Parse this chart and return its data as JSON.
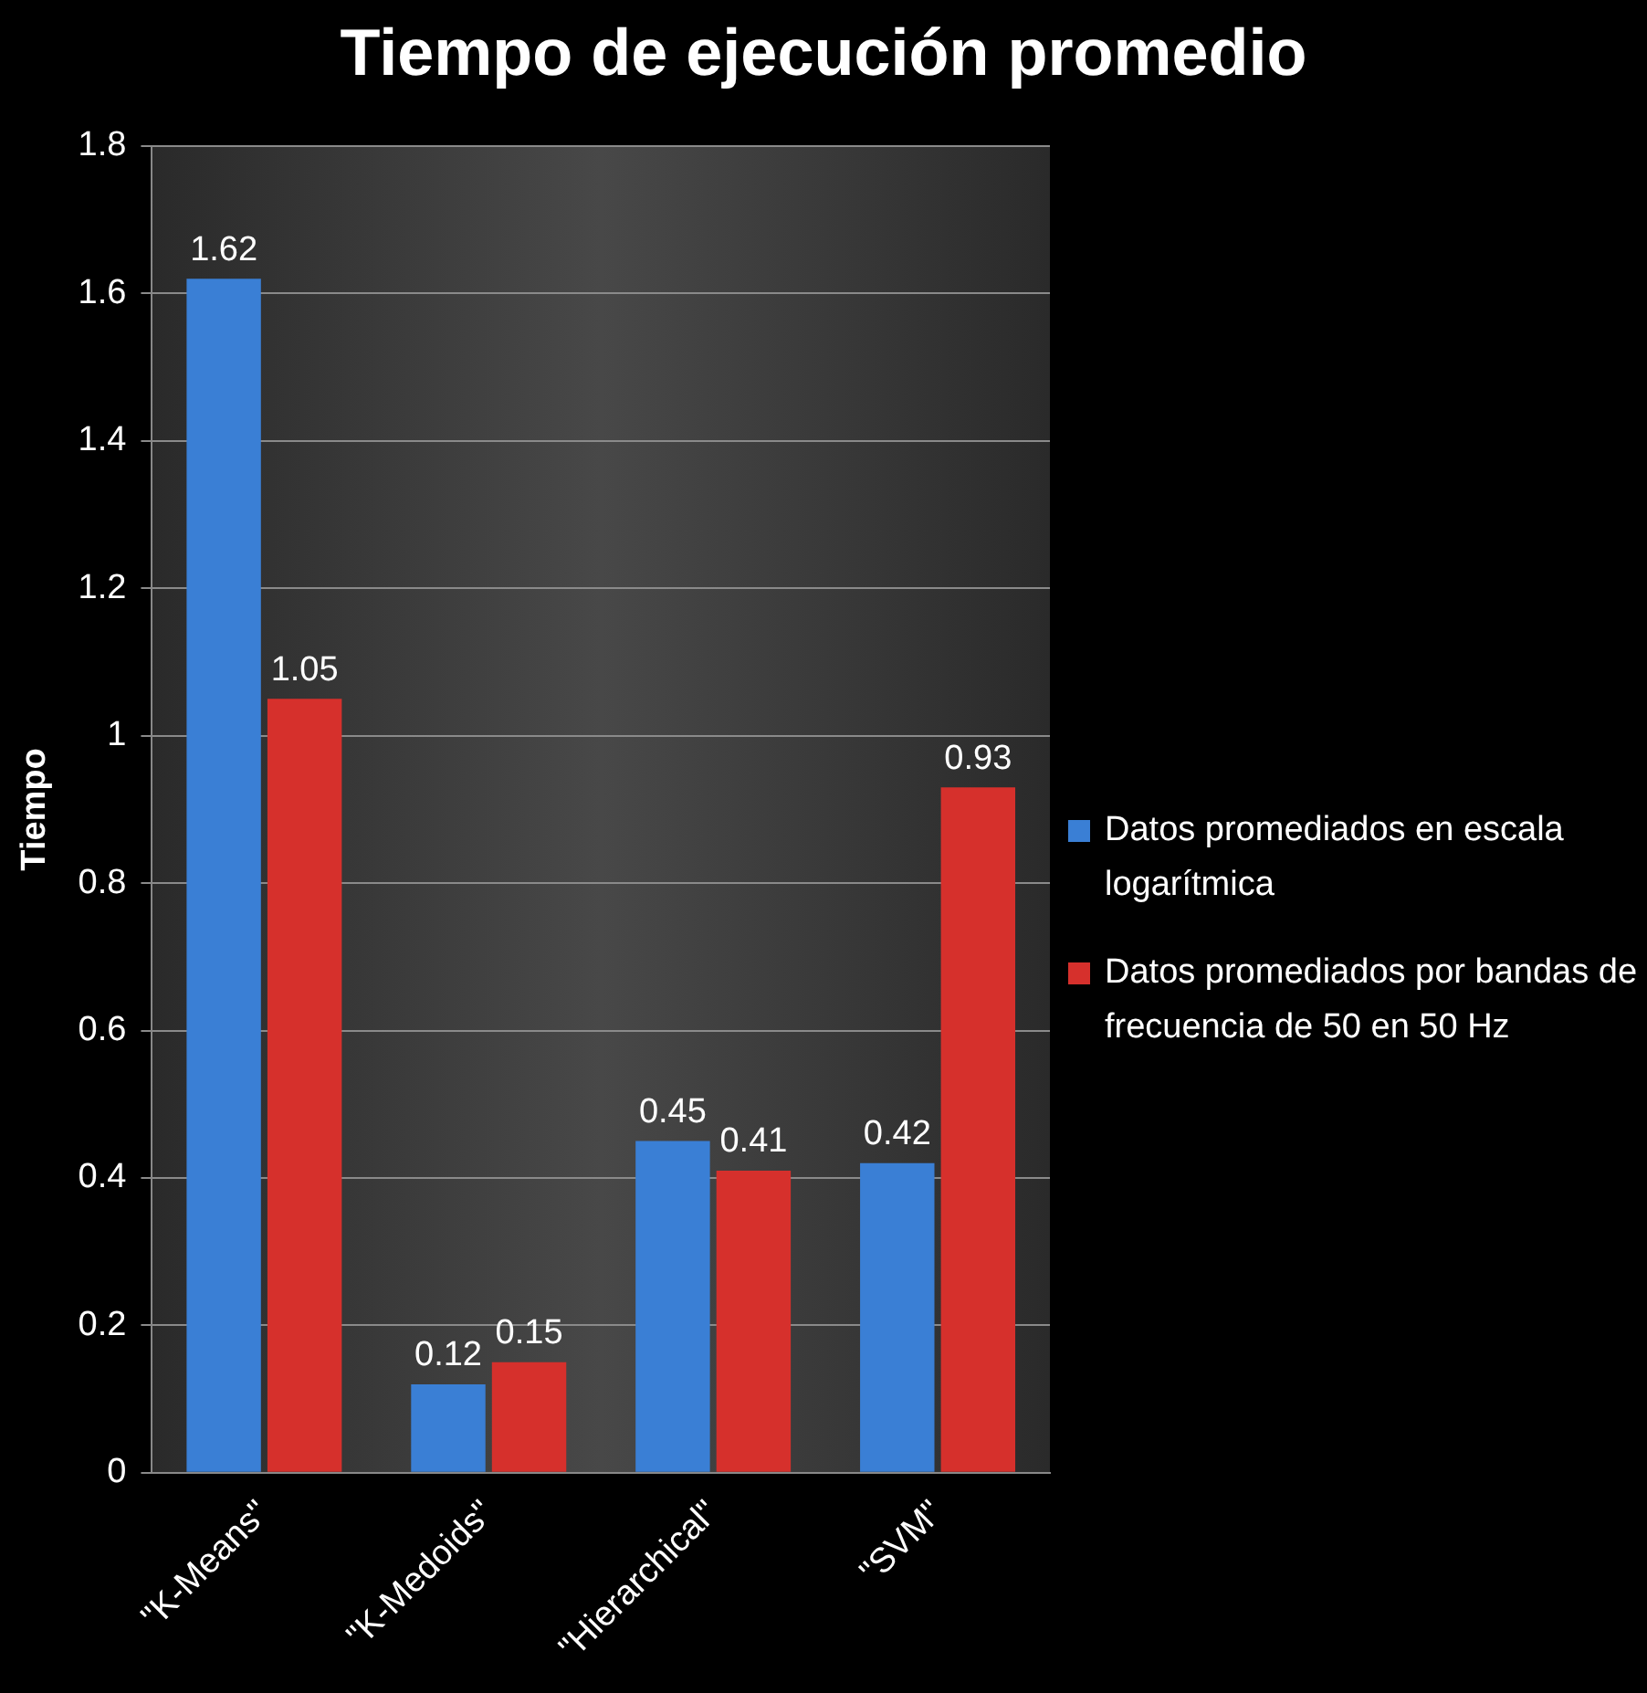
{
  "chart_data": {
    "type": "bar",
    "title": "Tiempo de ejecución promedio",
    "ylabel": "Tiempo",
    "categories": [
      "\"K-Means\"",
      "\"K-Medoids\"",
      "\"Hierarchical\"",
      "\"SVM\""
    ],
    "series": [
      {
        "name": "Datos promediados en escala logarítmica",
        "color": "#3a7fd5",
        "values": [
          1.62,
          0.12,
          0.45,
          0.42
        ]
      },
      {
        "name": "Datos promediados por bandas de frecuencia de 50 en 50 Hz",
        "color": "#d6302c",
        "values": [
          1.05,
          0.15,
          0.41,
          0.93
        ]
      }
    ],
    "ylim": [
      0,
      1.8
    ],
    "yticks": [
      0,
      0.2,
      0.4,
      0.6,
      0.8,
      1,
      1.2,
      1.4,
      1.6,
      1.8
    ],
    "grid": "y",
    "legend": "right",
    "data_labels": true
  }
}
